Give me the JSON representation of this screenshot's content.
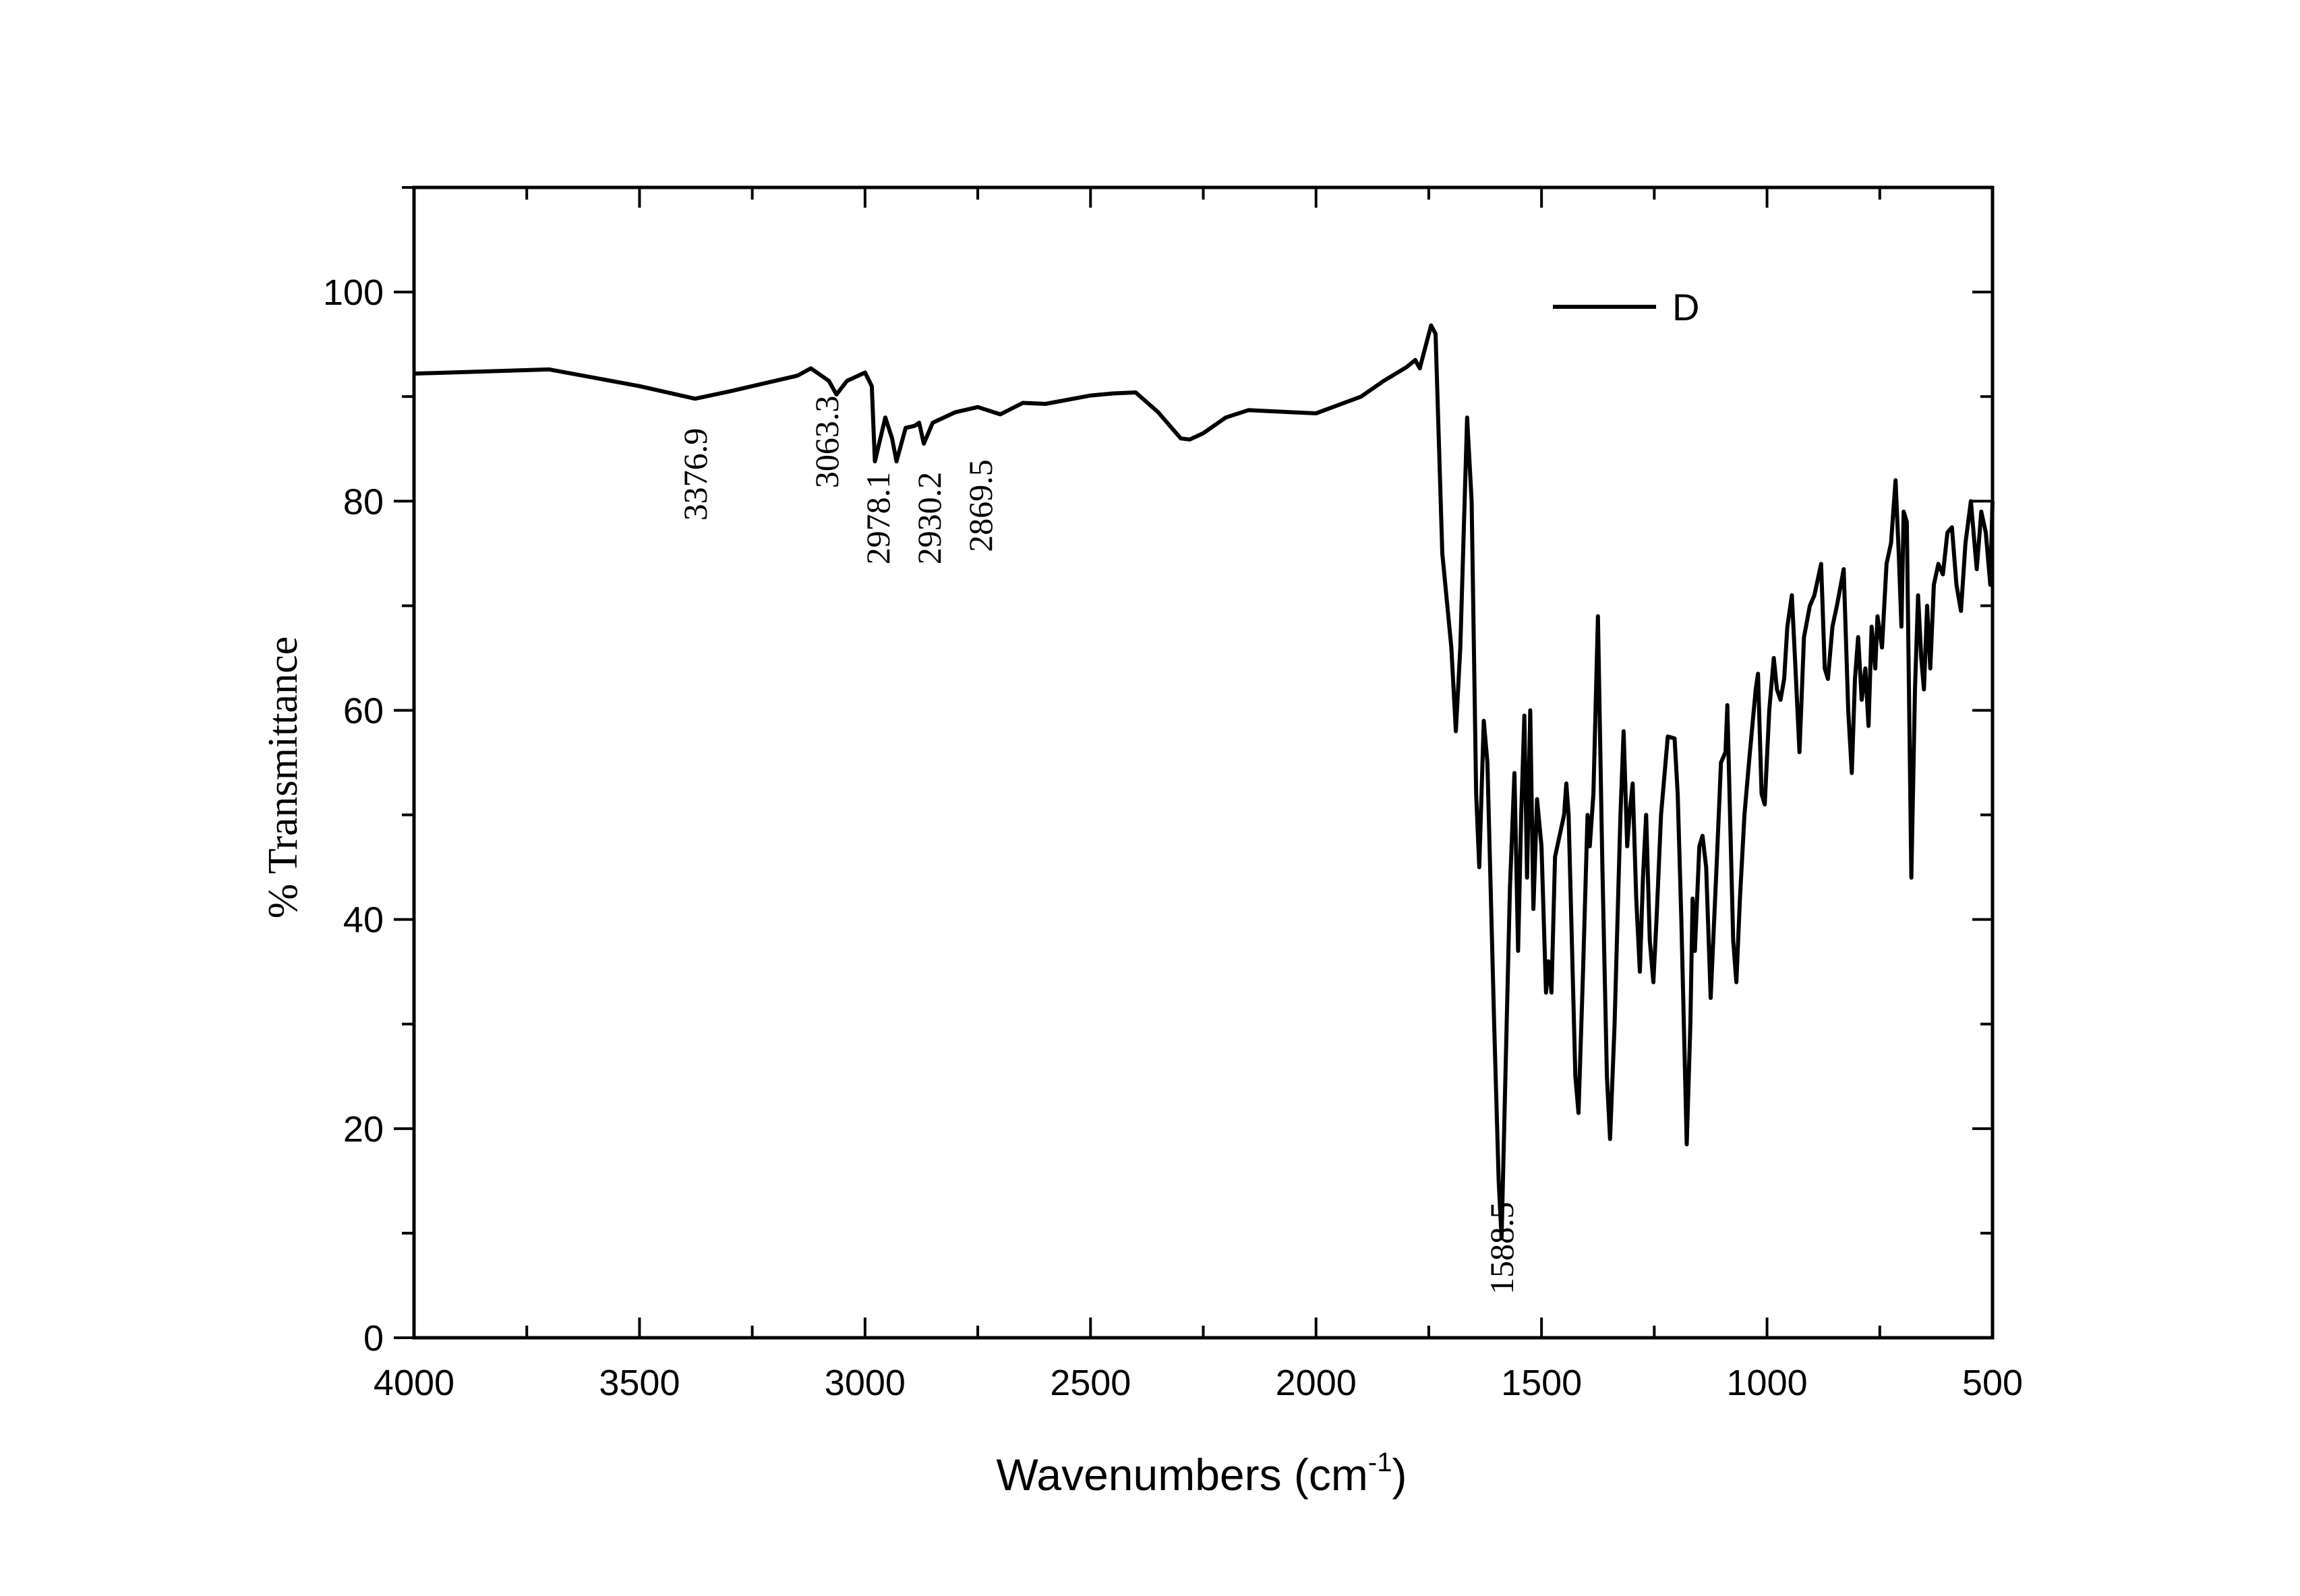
{
  "chart_data": {
    "type": "line",
    "title": "",
    "xlabel": "Wavenumbers (cm",
    "xlabel_superscript": "-1",
    "xlabel_suffix": ")",
    "ylabel": "% Transmittance",
    "xlim": [
      4000,
      500
    ],
    "ylim": [
      0,
      110
    ],
    "x_reversed": true,
    "grid": false,
    "legend_position": "top-right",
    "x_ticks": [
      4000,
      3500,
      3000,
      2500,
      2000,
      1500,
      1000,
      500
    ],
    "y_ticks": [
      0,
      20,
      40,
      60,
      80,
      100
    ],
    "line_color": "#000000",
    "series": [
      {
        "name": "D",
        "x": [
          4000,
          3700,
          3500,
          3376.9,
          3300,
          3200,
          3150,
          3120,
          3080,
          3063.3,
          3040,
          3000,
          2985,
          2978.1,
          2955,
          2940,
          2930.2,
          2910,
          2890,
          2880,
          2869.5,
          2850,
          2800,
          2750,
          2700,
          2650,
          2600,
          2500,
          2450,
          2400,
          2350,
          2300,
          2280,
          2250,
          2200,
          2150,
          2100,
          2000,
          1950,
          1900,
          1850,
          1800,
          1780,
          1770,
          1745,
          1735,
          1720,
          1700,
          1690,
          1680,
          1665,
          1655,
          1645,
          1638,
          1628,
          1620,
          1605,
          1595,
          1588.5,
          1580,
          1570,
          1560,
          1552,
          1545,
          1538,
          1532,
          1525,
          1518,
          1510,
          1500,
          1490,
          1485,
          1478,
          1470,
          1460,
          1450,
          1445,
          1440,
          1425,
          1418,
          1408,
          1398,
          1393,
          1385,
          1375,
          1365,
          1355,
          1348,
          1338,
          1325,
          1318,
          1310,
          1305,
          1298,
          1290,
          1282,
          1275,
          1268,
          1260,
          1252,
          1245,
          1235,
          1220,
          1205,
          1198,
          1190,
          1178,
          1170,
          1165,
          1160,
          1150,
          1143,
          1135,
          1125,
          1112,
          1102,
          1092,
          1088,
          1082,
          1075,
          1068,
          1060,
          1050,
          1040,
          1025,
          1020,
          1012,
          1005,
          995,
          985,
          978,
          970,
          962,
          955,
          945,
          938,
          928,
          918,
          905,
          895,
          880,
          872,
          865,
          855,
          845,
          830,
          820,
          812,
          805,
          798,
          790,
          782,
          775,
          768,
          760,
          755,
          745,
          735,
          725,
          715,
          708,
          702,
          697,
          690,
          680,
          672,
          665,
          658,
          652,
          645,
          638,
          630,
          620,
          610,
          600,
          590,
          580,
          570,
          560,
          548,
          540,
          535,
          525,
          515,
          505,
          500
        ],
        "y": [
          92.2,
          92.6,
          91,
          89.8,
          90.5,
          91.5,
          92,
          92.7,
          91.5,
          90.2,
          91.5,
          92.3,
          91,
          83.8,
          88,
          86,
          83.8,
          87,
          87.2,
          87.5,
          85.5,
          87.5,
          88.5,
          89,
          88.3,
          89.4,
          89.3,
          90.1,
          90.3,
          90.4,
          88.5,
          86,
          85.9,
          86.5,
          88,
          88.7,
          88.6,
          88.4,
          89.2,
          90,
          91.5,
          92.8,
          93.5,
          92.7,
          96.8,
          96,
          75,
          66,
          58,
          66,
          88,
          80,
          52,
          45,
          59,
          55,
          30,
          15,
          9.5,
          25,
          43,
          54,
          37,
          50,
          59.5,
          44,
          60,
          41,
          51.5,
          47,
          33,
          36,
          33,
          46,
          48,
          50,
          53,
          50,
          25,
          21.5,
          35,
          50,
          47,
          52,
          69,
          45,
          25,
          19,
          30,
          50,
          58,
          47,
          50,
          53,
          42,
          35,
          44,
          50,
          38,
          34,
          40,
          50,
          57.5,
          57.3,
          52,
          40,
          18.5,
          30,
          42,
          37,
          47,
          48,
          45,
          32.5,
          45,
          55,
          56,
          60.5,
          50,
          38,
          34,
          42,
          50,
          55,
          62,
          63.5,
          52,
          51,
          60,
          65,
          62,
          61,
          63,
          68,
          71,
          65,
          56,
          67,
          70,
          71,
          74,
          64,
          63,
          68,
          70,
          73.5,
          60,
          54,
          63,
          67,
          61,
          64,
          58.5,
          68,
          64,
          69,
          66,
          74,
          76,
          82,
          75,
          68,
          79,
          78,
          44,
          62,
          71,
          65,
          62,
          70,
          64,
          72,
          74,
          73,
          77,
          77.5,
          72,
          69.5,
          76,
          80,
          76,
          73.5,
          79,
          77,
          72,
          80
        ]
      }
    ],
    "annotations": [
      {
        "text": "3376.9",
        "x": 3376.9,
        "y": 87
      },
      {
        "text": "3063.3",
        "x": 3063.3,
        "y": 90.1
      },
      {
        "text": "2978.1",
        "x": 2978.1,
        "y": 82.8
      },
      {
        "text": "2930.2",
        "x": 2930.2,
        "y": 82.8
      },
      {
        "text": "2869.5",
        "x": 2869.5,
        "y": 84
      },
      {
        "text": "1588.5",
        "x": 1588.5,
        "y": 13
      }
    ]
  }
}
